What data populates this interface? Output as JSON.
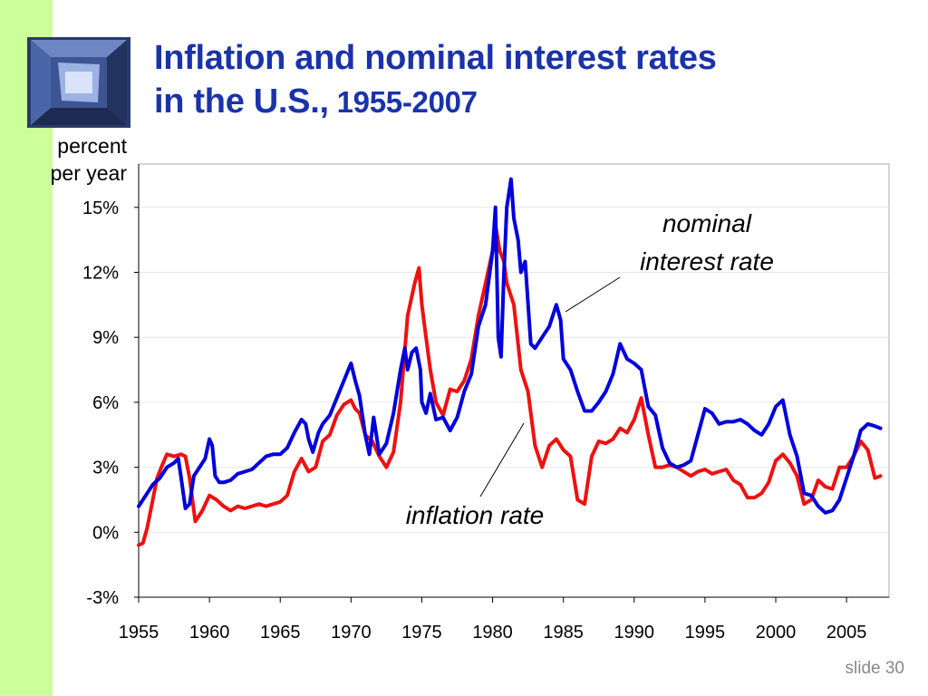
{
  "slide": {
    "title_line1": "Inflation and nominal interest rates",
    "title_line2_main": "in the U.S.,",
    "title_line2_years": " 1955-2007",
    "slide_number": "slide 30",
    "sidebar_color": "#ccff99",
    "title_color": "#1a33aa"
  },
  "chart_data": {
    "type": "line",
    "ylabel_line1": "percent",
    "ylabel_line2": "per year",
    "xlim": [
      1955,
      2008
    ],
    "ylim": [
      -3,
      17
    ],
    "yticks": [
      -3,
      0,
      3,
      6,
      9,
      12,
      15
    ],
    "ytick_labels": [
      "-3%",
      "0%",
      "3%",
      "6%",
      "9%",
      "12%",
      "15%"
    ],
    "xticks": [
      1955,
      1960,
      1965,
      1970,
      1975,
      1980,
      1985,
      1990,
      1995,
      2000,
      2005
    ],
    "xtick_labels": [
      "1955",
      "1960",
      "1965",
      "1970",
      "1975",
      "1980",
      "1985",
      "1990",
      "1995",
      "2000",
      "2005"
    ],
    "grid": true,
    "annotations": [
      {
        "text_line1": "nominal",
        "text_line2": "interest rate",
        "series": "nominal"
      },
      {
        "text_line1": "inflation rate",
        "series": "inflation"
      }
    ],
    "series": [
      {
        "key": "nominal",
        "color": "#0000dd",
        "points": [
          [
            1955,
            1.2
          ],
          [
            1955.3,
            1.5
          ],
          [
            1955.6,
            1.8
          ],
          [
            1956,
            2.2
          ],
          [
            1956.5,
            2.5
          ],
          [
            1957,
            3.0
          ],
          [
            1957.5,
            3.2
          ],
          [
            1957.8,
            3.4
          ],
          [
            1958,
            2.5
          ],
          [
            1958.3,
            1.1
          ],
          [
            1958.6,
            1.3
          ],
          [
            1958.9,
            2.6
          ],
          [
            1959.3,
            3.0
          ],
          [
            1959.7,
            3.4
          ],
          [
            1960,
            4.3
          ],
          [
            1960.2,
            4.0
          ],
          [
            1960.4,
            2.6
          ],
          [
            1960.7,
            2.3
          ],
          [
            1961,
            2.3
          ],
          [
            1961.5,
            2.4
          ],
          [
            1962,
            2.7
          ],
          [
            1962.5,
            2.8
          ],
          [
            1963,
            2.9
          ],
          [
            1963.5,
            3.2
          ],
          [
            1964,
            3.5
          ],
          [
            1964.5,
            3.6
          ],
          [
            1965,
            3.6
          ],
          [
            1965.5,
            3.9
          ],
          [
            1966,
            4.6
          ],
          [
            1966.5,
            5.2
          ],
          [
            1966.8,
            5.0
          ],
          [
            1967,
            4.3
          ],
          [
            1967.3,
            3.7
          ],
          [
            1967.7,
            4.6
          ],
          [
            1968,
            5.0
          ],
          [
            1968.5,
            5.4
          ],
          [
            1969,
            6.2
          ],
          [
            1969.5,
            7.0
          ],
          [
            1970,
            7.8
          ],
          [
            1970.3,
            7.0
          ],
          [
            1970.6,
            6.3
          ],
          [
            1971,
            4.5
          ],
          [
            1971.3,
            3.6
          ],
          [
            1971.6,
            5.3
          ],
          [
            1972,
            3.6
          ],
          [
            1972.5,
            4.1
          ],
          [
            1973,
            5.5
          ],
          [
            1973.5,
            7.5
          ],
          [
            1973.8,
            8.5
          ],
          [
            1974,
            7.5
          ],
          [
            1974.3,
            8.3
          ],
          [
            1974.6,
            8.5
          ],
          [
            1974.9,
            7.5
          ],
          [
            1975,
            6.0
          ],
          [
            1975.3,
            5.5
          ],
          [
            1975.6,
            6.4
          ],
          [
            1976,
            5.2
          ],
          [
            1976.5,
            5.3
          ],
          [
            1977,
            4.7
          ],
          [
            1977.5,
            5.3
          ],
          [
            1978,
            6.5
          ],
          [
            1978.5,
            7.3
          ],
          [
            1979,
            9.5
          ],
          [
            1979.5,
            10.5
          ],
          [
            1980,
            13.0
          ],
          [
            1980.2,
            15.0
          ],
          [
            1980.4,
            9.0
          ],
          [
            1980.6,
            8.1
          ],
          [
            1980.8,
            12.0
          ],
          [
            1981,
            15.0
          ],
          [
            1981.3,
            16.3
          ],
          [
            1981.5,
            14.5
          ],
          [
            1981.8,
            13.5
          ],
          [
            1982,
            12.0
          ],
          [
            1982.3,
            12.5
          ],
          [
            1982.7,
            8.7
          ],
          [
            1983,
            8.5
          ],
          [
            1983.5,
            9.0
          ],
          [
            1984,
            9.5
          ],
          [
            1984.5,
            10.5
          ],
          [
            1984.8,
            9.8
          ],
          [
            1985,
            8.0
          ],
          [
            1985.5,
            7.5
          ],
          [
            1986,
            6.5
          ],
          [
            1986.5,
            5.6
          ],
          [
            1987,
            5.6
          ],
          [
            1987.5,
            6.0
          ],
          [
            1988,
            6.5
          ],
          [
            1988.5,
            7.3
          ],
          [
            1989,
            8.7
          ],
          [
            1989.5,
            8.0
          ],
          [
            1990,
            7.8
          ],
          [
            1990.5,
            7.5
          ],
          [
            1991,
            5.8
          ],
          [
            1991.5,
            5.4
          ],
          [
            1992,
            3.9
          ],
          [
            1992.5,
            3.2
          ],
          [
            1993,
            3.0
          ],
          [
            1993.5,
            3.1
          ],
          [
            1994,
            3.3
          ],
          [
            1994.5,
            4.5
          ],
          [
            1995,
            5.7
          ],
          [
            1995.5,
            5.5
          ],
          [
            1996,
            5.0
          ],
          [
            1996.5,
            5.1
          ],
          [
            1997,
            5.1
          ],
          [
            1997.5,
            5.2
          ],
          [
            1998,
            5.0
          ],
          [
            1998.5,
            4.7
          ],
          [
            1999,
            4.5
          ],
          [
            1999.5,
            5.0
          ],
          [
            2000,
            5.8
          ],
          [
            2000.5,
            6.1
          ],
          [
            2001,
            4.5
          ],
          [
            2001.5,
            3.5
          ],
          [
            2002,
            1.8
          ],
          [
            2002.5,
            1.7
          ],
          [
            2003,
            1.2
          ],
          [
            2003.5,
            0.9
          ],
          [
            2004,
            1.0
          ],
          [
            2004.5,
            1.5
          ],
          [
            2005,
            2.5
          ],
          [
            2005.5,
            3.5
          ],
          [
            2006,
            4.7
          ],
          [
            2006.5,
            5.0
          ],
          [
            2007,
            4.9
          ],
          [
            2007.4,
            4.8
          ]
        ]
      },
      {
        "key": "inflation",
        "color": "#ee1111",
        "points": [
          [
            1955,
            -0.6
          ],
          [
            1955.3,
            -0.5
          ],
          [
            1955.6,
            0.2
          ],
          [
            1956,
            1.5
          ],
          [
            1956.3,
            2.5
          ],
          [
            1956.6,
            3.0
          ],
          [
            1957,
            3.6
          ],
          [
            1957.5,
            3.5
          ],
          [
            1958,
            3.6
          ],
          [
            1958.3,
            3.5
          ],
          [
            1958.6,
            2.5
          ],
          [
            1959,
            0.5
          ],
          [
            1959.5,
            1.0
          ],
          [
            1960,
            1.7
          ],
          [
            1960.5,
            1.5
          ],
          [
            1961,
            1.2
          ],
          [
            1961.5,
            1.0
          ],
          [
            1962,
            1.2
          ],
          [
            1962.5,
            1.1
          ],
          [
            1963,
            1.2
          ],
          [
            1963.5,
            1.3
          ],
          [
            1964,
            1.2
          ],
          [
            1964.5,
            1.3
          ],
          [
            1965,
            1.4
          ],
          [
            1965.5,
            1.7
          ],
          [
            1966,
            2.8
          ],
          [
            1966.5,
            3.4
          ],
          [
            1967,
            2.8
          ],
          [
            1967.5,
            3.0
          ],
          [
            1968,
            4.2
          ],
          [
            1968.5,
            4.5
          ],
          [
            1969,
            5.4
          ],
          [
            1969.5,
            5.9
          ],
          [
            1970,
            6.1
          ],
          [
            1970.3,
            5.7
          ],
          [
            1970.6,
            5.5
          ],
          [
            1971,
            4.5
          ],
          [
            1971.5,
            4.2
          ],
          [
            1972,
            3.5
          ],
          [
            1972.5,
            3.0
          ],
          [
            1973,
            3.7
          ],
          [
            1973.5,
            6.0
          ],
          [
            1974,
            10.0
          ],
          [
            1974.5,
            11.5
          ],
          [
            1974.8,
            12.2
          ],
          [
            1975,
            10.5
          ],
          [
            1975.3,
            9.0
          ],
          [
            1975.6,
            7.5
          ],
          [
            1976,
            6.0
          ],
          [
            1976.5,
            5.4
          ],
          [
            1977,
            6.6
          ],
          [
            1977.5,
            6.5
          ],
          [
            1978,
            7.0
          ],
          [
            1978.5,
            8.0
          ],
          [
            1979,
            10.0
          ],
          [
            1979.5,
            11.5
          ],
          [
            1980,
            13.0
          ],
          [
            1980.2,
            14.2
          ],
          [
            1980.5,
            13.0
          ],
          [
            1980.8,
            12.5
          ],
          [
            1981,
            11.5
          ],
          [
            1981.5,
            10.5
          ],
          [
            1982,
            7.5
          ],
          [
            1982.5,
            6.5
          ],
          [
            1983,
            4.0
          ],
          [
            1983.5,
            3.0
          ],
          [
            1984,
            4.0
          ],
          [
            1984.5,
            4.3
          ],
          [
            1985,
            3.8
          ],
          [
            1985.5,
            3.5
          ],
          [
            1986,
            1.5
          ],
          [
            1986.5,
            1.3
          ],
          [
            1987,
            3.5
          ],
          [
            1987.5,
            4.2
          ],
          [
            1988,
            4.1
          ],
          [
            1988.5,
            4.3
          ],
          [
            1989,
            4.8
          ],
          [
            1989.5,
            4.6
          ],
          [
            1990,
            5.2
          ],
          [
            1990.5,
            6.2
          ],
          [
            1991,
            4.5
          ],
          [
            1991.5,
            3.0
          ],
          [
            1992,
            3.0
          ],
          [
            1992.5,
            3.1
          ],
          [
            1993,
            3.0
          ],
          [
            1993.5,
            2.8
          ],
          [
            1994,
            2.6
          ],
          [
            1994.5,
            2.8
          ],
          [
            1995,
            2.9
          ],
          [
            1995.5,
            2.7
          ],
          [
            1996,
            2.8
          ],
          [
            1996.5,
            2.9
          ],
          [
            1997,
            2.4
          ],
          [
            1997.5,
            2.2
          ],
          [
            1998,
            1.6
          ],
          [
            1998.5,
            1.6
          ],
          [
            1999,
            1.8
          ],
          [
            1999.5,
            2.3
          ],
          [
            2000,
            3.3
          ],
          [
            2000.5,
            3.6
          ],
          [
            2001,
            3.2
          ],
          [
            2001.5,
            2.6
          ],
          [
            2002,
            1.3
          ],
          [
            2002.5,
            1.5
          ],
          [
            2003,
            2.4
          ],
          [
            2003.5,
            2.1
          ],
          [
            2004,
            2.0
          ],
          [
            2004.5,
            3.0
          ],
          [
            2005,
            3.0
          ],
          [
            2005.5,
            3.5
          ],
          [
            2006,
            4.2
          ],
          [
            2006.5,
            3.8
          ],
          [
            2007,
            2.5
          ],
          [
            2007.4,
            2.6
          ]
        ]
      }
    ]
  }
}
